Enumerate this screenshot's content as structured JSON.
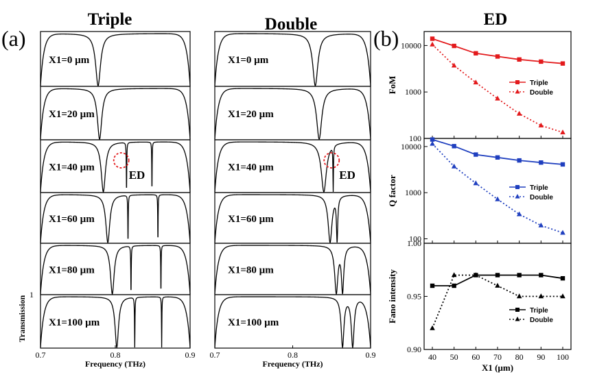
{
  "figure": {
    "panel_a_label": "(a)",
    "panel_b_label": "(b)",
    "triple_title": "Triple",
    "double_title": "Double",
    "ed_title": "ED",
    "ed_marker_label": "ED",
    "transmission_label": "Transmission",
    "transmission_tick": "1",
    "frequency_label": "Frequency (THz)"
  },
  "chart_data": [
    {
      "type": "line",
      "panel": "a-triple",
      "title": "Triple",
      "xlabel": "Frequency (THz)",
      "ylabel": "Transmission",
      "xlim": [
        0.7,
        0.9
      ],
      "xticks": [
        "0.7",
        "0.8",
        "0.9"
      ],
      "ylim": [
        0,
        1
      ],
      "series": [
        {
          "case": "X1=0 µm",
          "dips": [
            {
              "f": 0.777,
              "w": 0.004
            }
          ]
        },
        {
          "case": "X1=20 µm",
          "dips": [
            {
              "f": 0.779,
              "w": 0.0036
            }
          ]
        },
        {
          "case": "X1=40 µm",
          "dips": [
            {
              "f": 0.784,
              "w": 0.0034
            },
            {
              "f": 0.815,
              "w": 0.00035
            },
            {
              "f": 0.849,
              "w": 0.0003
            }
          ],
          "ed_marker": 0.808
        },
        {
          "case": "X1=60 µm",
          "dips": [
            {
              "f": 0.79,
              "w": 0.0032
            },
            {
              "f": 0.817,
              "w": 0.00035
            },
            {
              "f": 0.857,
              "w": 0.0003
            }
          ]
        },
        {
          "case": "X1=80 µm",
          "dips": [
            {
              "f": 0.796,
              "w": 0.003
            },
            {
              "f": 0.821,
              "w": 0.00035
            },
            {
              "f": 0.861,
              "w": 0.0003
            }
          ]
        },
        {
          "case": "X1=100 µm",
          "dips": [
            {
              "f": 0.802,
              "w": 0.0028
            },
            {
              "f": 0.826,
              "w": 0.00035
            },
            {
              "f": 0.862,
              "w": 0.0003
            }
          ]
        }
      ]
    },
    {
      "type": "line",
      "panel": "a-double",
      "title": "Double",
      "xlabel": "Frequency (THz)",
      "xlim": [
        0.7,
        0.9
      ],
      "xticks": [
        "0.7",
        "0.8",
        "0.9"
      ],
      "ylim": [
        0,
        1
      ],
      "series": [
        {
          "case": "X1=0 µm",
          "dips": [
            {
              "f": 0.829,
              "w": 0.004
            }
          ]
        },
        {
          "case": "X1=20 µm",
          "dips": [
            {
              "f": 0.834,
              "w": 0.004
            }
          ]
        },
        {
          "case": "X1=40 µm",
          "dips": [
            {
              "f": 0.84,
              "w": 0.004
            },
            {
              "f": 0.852,
              "w": 0.0004
            }
          ],
          "ed_marker": 0.85
        },
        {
          "case": "X1=60 µm",
          "dips": [
            {
              "f": 0.848,
              "w": 0.003
            },
            {
              "f": 0.857,
              "w": 0.001
            }
          ]
        },
        {
          "case": "X1=80 µm",
          "dips": [
            {
              "f": 0.856,
              "w": 0.0025
            },
            {
              "f": 0.864,
              "w": 0.0018
            }
          ]
        },
        {
          "case": "X1=100 µm",
          "dips": [
            {
              "f": 0.864,
              "w": 0.0022
            },
            {
              "f": 0.877,
              "w": 0.0022
            }
          ]
        }
      ]
    },
    {
      "type": "line",
      "panel": "b-fom",
      "ylabel": "FoM",
      "yscale": "log",
      "ylim": [
        100,
        20000
      ],
      "yticks": [
        100,
        1000,
        10000
      ],
      "x": [
        40,
        50,
        60,
        70,
        80,
        90,
        100
      ],
      "series": [
        {
          "name": "Triple",
          "color": "#e31a1c",
          "marker": "square",
          "style": "solid",
          "values": [
            14000,
            9800,
            6800,
            5800,
            5000,
            4500,
            4100
          ]
        },
        {
          "name": "Double",
          "color": "#e31a1c",
          "marker": "triangle",
          "style": "dotted",
          "values": [
            10500,
            3700,
            1600,
            720,
            340,
            190,
            135
          ]
        }
      ]
    },
    {
      "type": "line",
      "panel": "b-q",
      "ylabel": "Q factor",
      "yscale": "log",
      "ylim": [
        80,
        15000
      ],
      "yticks": [
        100,
        1000,
        10000
      ],
      "x": [
        40,
        50,
        60,
        70,
        80,
        90,
        100
      ],
      "series": [
        {
          "name": "Triple",
          "color": "#1f3fbf",
          "marker": "square",
          "style": "solid",
          "values": [
            14200,
            10200,
            6700,
            5800,
            5000,
            4500,
            4100
          ]
        },
        {
          "name": "Double",
          "color": "#1f3fbf",
          "marker": "triangle",
          "style": "dotted",
          "values": [
            11500,
            3700,
            1600,
            720,
            340,
            195,
            135
          ]
        }
      ]
    },
    {
      "type": "line",
      "panel": "b-fano",
      "ylabel": "Fano intensity",
      "xlabel": "X1 (µm)",
      "ylim": [
        0.9,
        1.0
      ],
      "yticks": [
        "0.90",
        "0.95",
        "1.00"
      ],
      "xticks": [
        "40",
        "50",
        "60",
        "70",
        "80",
        "90",
        "100"
      ],
      "x": [
        40,
        50,
        60,
        70,
        80,
        90,
        100
      ],
      "series": [
        {
          "name": "Triple",
          "color": "#000000",
          "marker": "square",
          "style": "solid",
          "values": [
            0.96,
            0.96,
            0.97,
            0.97,
            0.97,
            0.97,
            0.967
          ]
        },
        {
          "name": "Double",
          "color": "#000000",
          "marker": "triangle",
          "style": "dotted",
          "values": [
            0.92,
            0.97,
            0.97,
            0.96,
            0.95,
            0.95,
            0.95
          ]
        }
      ]
    }
  ]
}
